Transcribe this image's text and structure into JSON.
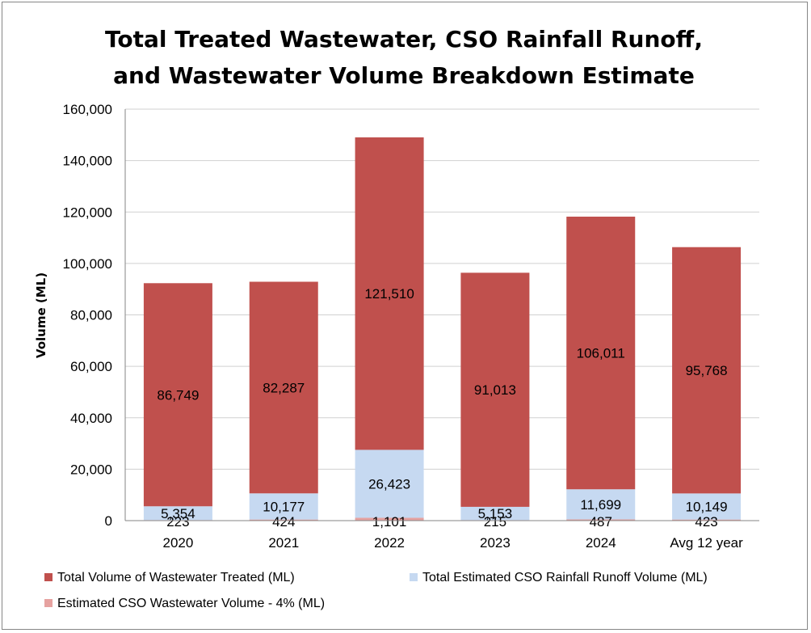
{
  "chart_data": {
    "type": "bar",
    "stacked": true,
    "title_lines": [
      "Total Treated Wastewater, CSO Rainfall Runoff,",
      "and Wastewater Volume Breakdown Estimate"
    ],
    "xlabel": "",
    "ylabel": "Volume (ML)",
    "ylim": [
      0,
      160000
    ],
    "yticks": [
      0,
      20000,
      40000,
      60000,
      80000,
      100000,
      120000,
      140000,
      160000
    ],
    "ytick_labels": [
      "0",
      "20,000",
      "40,000",
      "60,000",
      "80,000",
      "100,000",
      "120,000",
      "140,000",
      "160,000"
    ],
    "grid": true,
    "legend_position": "bottom",
    "categories": [
      "2020",
      "2021",
      "2022",
      "2023",
      "2024",
      "Avg 12 year"
    ],
    "series": [
      {
        "name": "Estimated CSO Wastewater Volume - 4% (ML)",
        "color": "#e6a2a0",
        "values": [
          223,
          424,
          1101,
          215,
          487,
          423
        ],
        "labels": [
          "223",
          "424",
          "1,101",
          "215",
          "487",
          "423"
        ]
      },
      {
        "name": "Total Estimated CSO Rainfall Runoff Volume (ML)",
        "color": "#c6d9f1",
        "values": [
          5354,
          10177,
          26423,
          5153,
          11699,
          10149
        ],
        "labels": [
          "5,354",
          "10,177",
          "26,423",
          "5,153",
          "11,699",
          "10,149"
        ]
      },
      {
        "name": "Total Volume of Wastewater Treated (ML)",
        "color": "#c0504d",
        "values": [
          86749,
          82287,
          121510,
          91013,
          106011,
          95768
        ],
        "labels": [
          "86,749",
          "82,287",
          "121,510",
          "91,013",
          "106,011",
          "95,768"
        ]
      }
    ],
    "legend_order": [
      2,
      1,
      0
    ]
  }
}
